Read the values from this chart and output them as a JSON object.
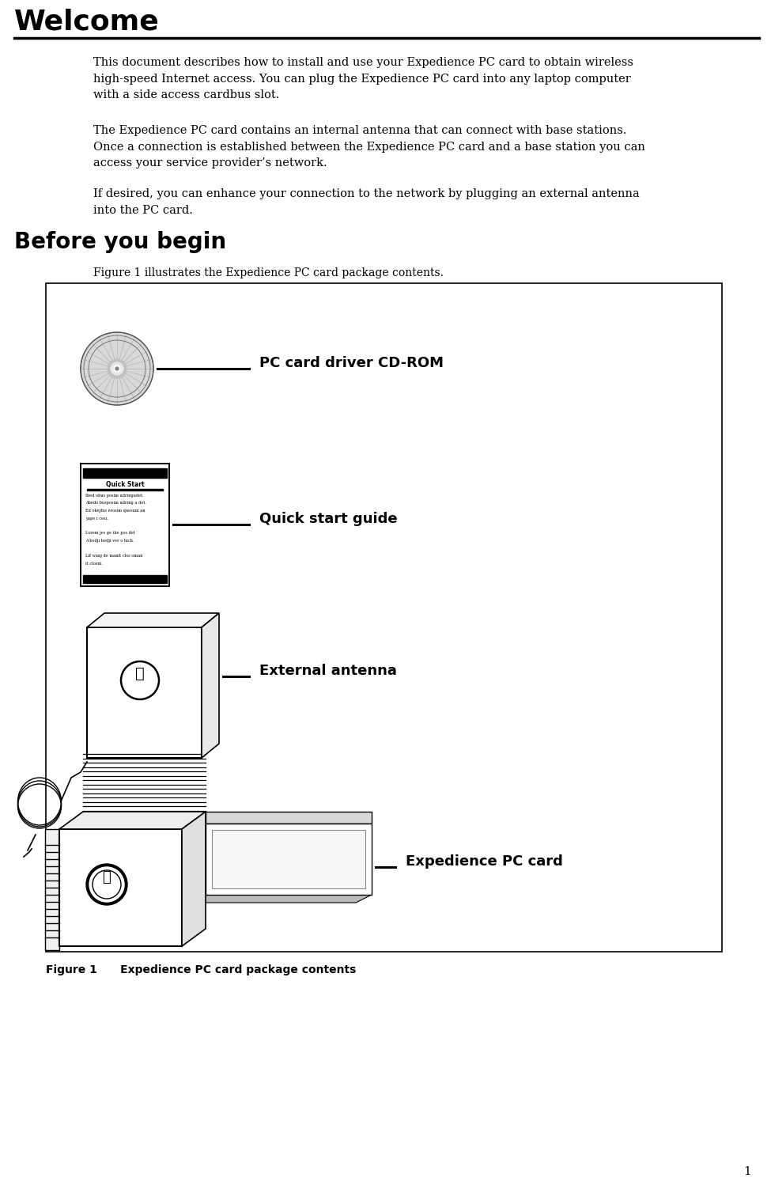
{
  "page_title": "Welcome",
  "page_number": "1",
  "title_fontsize": 26,
  "title_fontweight": "bold",
  "section2_title": "Before you begin",
  "section2_fontsize": 20,
  "section2_fontweight": "bold",
  "body_text1": "This document describes how to install and use your Expedience PC card to obtain wireless\nhigh-speed Internet access. You can plug the Expedience PC card into any laptop computer\nwith a side access cardbus slot.",
  "body_text2": "The Expedience PC card contains an internal antenna that can connect with base stations.\nOnce a connection is established between the Expedience PC card and a base station you can\naccess your service provider’s network.",
  "body_text3": "If desired, you can enhance your connection to the network by plugging an external antenna\ninto the PC card.",
  "figure_caption_pre": "Figure 1 illustrates the Expedience PC card package contents.",
  "figure_caption_post": "Figure 1      Expedience PC card package contents",
  "label_cdrom": "PC card driver CD-ROM",
  "label_quickstart": "Quick start guide",
  "label_antenna": "External antenna",
  "label_pccard": "Expedience PC card",
  "body_fontsize": 10.5,
  "label_fontsize": 13,
  "label_fontweight": "bold",
  "figure_caption_fontsize": 10,
  "figure_label_fontsize": 10,
  "figure_label_fontweight": "bold",
  "bg_color": "#ffffff",
  "text_color": "#000000"
}
